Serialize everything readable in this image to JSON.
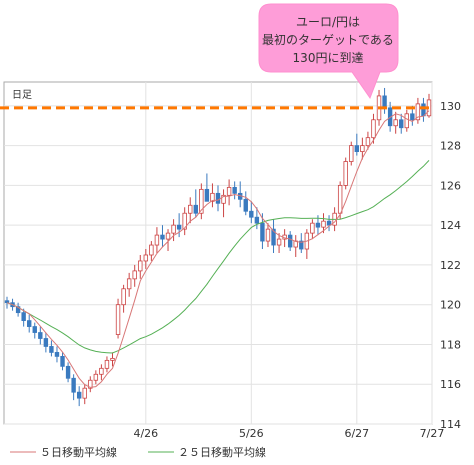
{
  "chart_data": {
    "type": "candlestick",
    "timeframe_label": "日足",
    "xtick_labels": [
      "4/26",
      "5/26",
      "6/27",
      "7/27"
    ],
    "ytick_labels": [
      "114",
      "116",
      "118",
      "120",
      "122",
      "124",
      "126",
      "128",
      "130"
    ],
    "ylim": [
      114,
      131.2
    ],
    "grid": true,
    "legend_position": "bottom",
    "series": [
      {
        "name": "５日移動平均線",
        "color": "#d87777"
      },
      {
        "name": "２５日移動平均線",
        "color": "#55b055"
      }
    ],
    "reference_line": {
      "value": 129.9,
      "color": "#ff7700"
    },
    "annotation": {
      "lines": [
        "ユーロ/円は",
        "最初のターゲットである",
        "130円に到達"
      ],
      "fill": "#fe9dd8"
    },
    "candles": [
      [
        120.2,
        120.4,
        119.8,
        120.1
      ],
      [
        120.1,
        120.3,
        119.7,
        119.9
      ],
      [
        119.9,
        120.1,
        119.4,
        119.6
      ],
      [
        119.6,
        119.8,
        118.9,
        119.2
      ],
      [
        119.2,
        119.5,
        118.6,
        118.9
      ],
      [
        118.9,
        119.1,
        118.3,
        118.6
      ],
      [
        118.6,
        118.9,
        118.0,
        118.3
      ],
      [
        118.3,
        118.6,
        117.6,
        117.9
      ],
      [
        117.9,
        118.2,
        117.4,
        117.6
      ],
      [
        117.6,
        117.9,
        117.1,
        117.4
      ],
      [
        117.4,
        117.6,
        116.7,
        116.9
      ],
      [
        116.9,
        117.1,
        116.1,
        116.3
      ],
      [
        116.3,
        116.5,
        115.2,
        115.6
      ],
      [
        115.6,
        115.9,
        114.9,
        115.3
      ],
      [
        115.3,
        116.0,
        115.0,
        115.8
      ],
      [
        115.8,
        116.4,
        115.6,
        116.2
      ],
      [
        116.2,
        116.7,
        116.0,
        116.5
      ],
      [
        116.5,
        117.0,
        116.2,
        116.8
      ],
      [
        116.8,
        117.4,
        116.6,
        117.2
      ],
      [
        117.2,
        117.6,
        116.9,
        117.3
      ],
      [
        118.5,
        120.3,
        118.3,
        120.0
      ],
      [
        120.0,
        121.0,
        119.6,
        120.8
      ],
      [
        120.8,
        121.6,
        120.4,
        121.3
      ],
      [
        121.3,
        122.0,
        120.9,
        121.7
      ],
      [
        121.7,
        122.5,
        121.3,
        122.2
      ],
      [
        122.2,
        122.8,
        121.8,
        122.5
      ],
      [
        122.5,
        123.2,
        122.2,
        123.0
      ],
      [
        123.0,
        123.9,
        122.6,
        123.5
      ],
      [
        123.5,
        124.0,
        122.9,
        123.3
      ],
      [
        123.3,
        123.8,
        122.7,
        123.6
      ],
      [
        123.6,
        124.3,
        123.2,
        124.0
      ],
      [
        124.0,
        124.6,
        123.4,
        123.8
      ],
      [
        123.8,
        124.9,
        123.5,
        124.6
      ],
      [
        124.6,
        125.4,
        124.1,
        125.0
      ],
      [
        125.0,
        125.8,
        124.4,
        124.6
      ],
      [
        124.6,
        126.1,
        124.3,
        125.8
      ],
      [
        125.8,
        126.6,
        125.3,
        125.2
      ],
      [
        125.2,
        126.1,
        124.9,
        125.6
      ],
      [
        125.6,
        126.0,
        124.7,
        125.1
      ],
      [
        125.1,
        125.8,
        124.4,
        125.5
      ],
      [
        125.5,
        126.3,
        125.0,
        125.9
      ],
      [
        125.9,
        126.2,
        125.3,
        125.6
      ],
      [
        125.6,
        126.2,
        124.9,
        125.3
      ],
      [
        125.3,
        125.7,
        124.5,
        124.7
      ],
      [
        124.7,
        125.2,
        124.1,
        124.4
      ],
      [
        124.4,
        124.9,
        123.8,
        124.1
      ],
      [
        124.1,
        124.6,
        122.8,
        123.2
      ],
      [
        123.2,
        124.1,
        122.9,
        123.8
      ],
      [
        123.8,
        124.3,
        122.6,
        123.0
      ],
      [
        123.0,
        123.6,
        122.6,
        123.3
      ],
      [
        123.3,
        123.8,
        122.9,
        123.5
      ],
      [
        123.5,
        123.7,
        122.7,
        122.9
      ],
      [
        122.9,
        123.5,
        122.4,
        123.2
      ],
      [
        123.2,
        123.6,
        122.6,
        122.8
      ],
      [
        122.8,
        123.8,
        122.3,
        123.6
      ],
      [
        123.6,
        124.3,
        123.3,
        124.1
      ],
      [
        124.1,
        124.5,
        123.5,
        123.9
      ],
      [
        123.9,
        124.6,
        123.6,
        124.2
      ],
      [
        124.2,
        124.5,
        123.7,
        124.0
      ],
      [
        124.0,
        124.9,
        123.7,
        124.6
      ],
      [
        124.6,
        126.2,
        124.3,
        126.0
      ],
      [
        126.0,
        127.4,
        125.8,
        127.2
      ],
      [
        127.2,
        128.2,
        127.0,
        128.0
      ],
      [
        128.0,
        128.6,
        127.5,
        127.7
      ],
      [
        127.7,
        128.4,
        127.3,
        128.0
      ],
      [
        128.0,
        128.7,
        127.8,
        128.4
      ],
      [
        128.4,
        129.6,
        128.1,
        129.3
      ],
      [
        129.3,
        130.8,
        129.0,
        130.5
      ],
      [
        130.5,
        130.9,
        129.6,
        129.9
      ],
      [
        129.9,
        130.2,
        128.7,
        129.0
      ],
      [
        129.0,
        129.7,
        128.6,
        129.3
      ],
      [
        129.3,
        129.6,
        128.6,
        128.9
      ],
      [
        128.9,
        129.8,
        128.7,
        129.6
      ],
      [
        129.6,
        130.0,
        129.0,
        129.3
      ],
      [
        129.3,
        130.4,
        129.1,
        130.1
      ],
      [
        130.1,
        130.4,
        129.2,
        129.5
      ],
      [
        129.5,
        130.6,
        129.4,
        130.3
      ]
    ]
  }
}
